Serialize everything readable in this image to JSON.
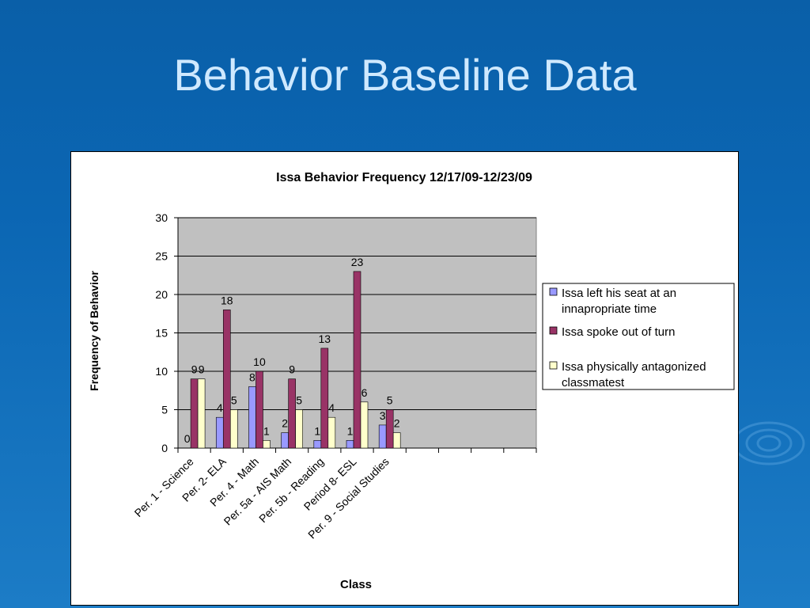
{
  "slide": {
    "title": "Behavior Baseline Data"
  },
  "colors": {
    "background": "#0b66b3",
    "title": "#cfe9ff",
    "plot_area": "#c0c0c0",
    "series": [
      "#9999ff",
      "#993366",
      "#ffffcc"
    ]
  },
  "chart_data": {
    "type": "bar",
    "title": "Issa Behavior Frequency 12/17/09-12/23/09",
    "xlabel": "Class",
    "ylabel": "Frequency of Behavior",
    "ylim": [
      0,
      30
    ],
    "yticks": [
      0,
      5,
      10,
      15,
      20,
      25,
      30
    ],
    "grid": true,
    "legend_position": "right",
    "categories": [
      "Per. 1 - Science",
      "Per. 2- ELA",
      "Per. 4 - Math",
      "Per. 5a - AIS Math",
      "Per. 5b - Reading",
      "Period 8- ESL",
      "Per. 9 - Social Studies",
      "",
      "",
      "",
      ""
    ],
    "series": [
      {
        "name": "Issa left his seat at an innapropriate time",
        "values": [
          0,
          4,
          8,
          2,
          1,
          1,
          3,
          null,
          null,
          null,
          null
        ]
      },
      {
        "name": "Issa spoke out of turn",
        "values": [
          9,
          18,
          10,
          9,
          13,
          23,
          5,
          null,
          null,
          null,
          null
        ]
      },
      {
        "name": "Issa physically antagonized classmatest",
        "values": [
          9,
          5,
          1,
          5,
          4,
          6,
          2,
          null,
          null,
          null,
          null
        ]
      }
    ]
  }
}
